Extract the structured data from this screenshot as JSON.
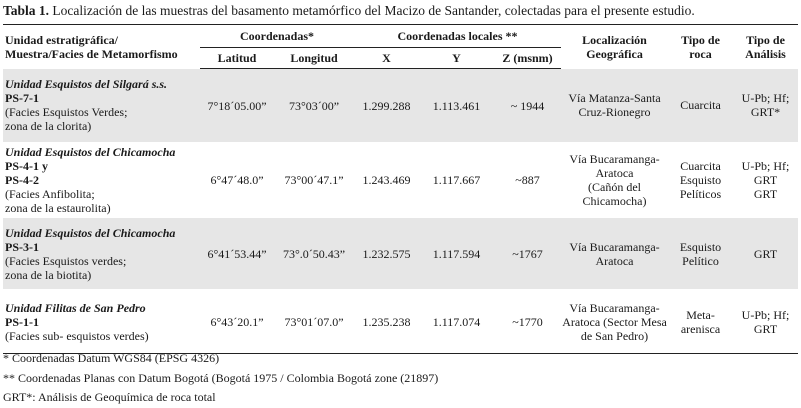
{
  "caption": {
    "label": "Tabla 1.",
    "text": "Localización de las muestras del basamento metamórfico del Macizo de Santander, colectadas para el presente estudio."
  },
  "headers": {
    "unit_line1": "Unidad estratigráfica/",
    "unit_line2": "Muestra/Facies de Metamorfismo",
    "coords": "Coordenadas*",
    "local_coords": "Coordenadas locales **",
    "location_line1": "Localización",
    "location_line2": "Geográfica",
    "rock_line1": "Tipo de",
    "rock_line2": "roca",
    "analysis_line1": "Tipo de",
    "analysis_line2": "Análisis",
    "lat": "Latitud",
    "lon": "Longitud",
    "x": "X",
    "y": "Y",
    "z": "Z (msnm)"
  },
  "rows": [
    {
      "unit": "Unidad Esquistos del Silgará s.s.",
      "sample_lines": [
        "PS-7-1"
      ],
      "facies_lines": [
        "(Facies Esquistos Verdes;",
        "zona de la clorita)"
      ],
      "lat": "7°18´05.00”",
      "lon": "73°03´00”",
      "x": "1.299.288",
      "y": "1.113.461",
      "z": "~ 1944",
      "location_lines": [
        "Vía Matanza-Santa",
        "Cruz-Rionegro"
      ],
      "rock_lines": [
        "Cuarcita"
      ],
      "analysis_lines": [
        "U-Pb; Hf;",
        "GRT*"
      ]
    },
    {
      "unit": "Unidad Esquistos del Chicamocha",
      "sample_lines": [
        "PS-4-1 y",
        "PS-4-2"
      ],
      "facies_lines": [
        "(Facies Anfibolita;",
        "zona de la estaurolita)"
      ],
      "lat": "6°47´48.0”",
      "lon": "73°00´47.1”",
      "x": "1.243.469",
      "y": "1.117.667",
      "z": "~887",
      "location_lines": [
        "Vía Bucaramanga-",
        "Aratoca",
        "(Cañón del",
        "Chicamocha)"
      ],
      "rock_lines": [
        "Cuarcita",
        "Esquisto",
        "Pelíticos"
      ],
      "analysis_lines": [
        "U-Pb; Hf;",
        "GRT",
        "GRT"
      ]
    },
    {
      "unit": "Unidad Esquistos del Chicamocha",
      "sample_lines": [
        "PS-3-1"
      ],
      "facies_lines": [
        "(Facies Esquistos verdes;",
        "zona de la biotita)"
      ],
      "lat": "6°41´53.44”",
      "lon": "73°.0´50.43”",
      "x": "1.232.575",
      "y": "1.117.594",
      "z": "~1767",
      "location_lines": [
        "Vía Bucaramanga-",
        "Aratoca"
      ],
      "rock_lines": [
        "Esquisto",
        "Pelítico"
      ],
      "analysis_lines": [
        "GRT"
      ]
    },
    {
      "unit": "Unidad Filitas de San Pedro",
      "sample_lines": [
        "PS-1-1"
      ],
      "facies_lines": [
        "(Facies sub- esquistos verdes)"
      ],
      "lat": "6°43´20.1”",
      "lon": "73°01´07.0”",
      "x": "1.235.238",
      "y": "1.117.074",
      "z": "~1770",
      "location_lines": [
        "Vía Bucaramanga-",
        "Aratoca (Sector Mesa",
        "de San Pedro)"
      ],
      "rock_lines": [
        "Meta-",
        "arenisca"
      ],
      "analysis_lines": [
        "U-Pb; Hf;",
        "GRT"
      ]
    }
  ],
  "notes": [
    "*  Coordenadas Datum WGS84  (EPSG 4326)",
    "** Coordenadas Planas con Datum Bogotá (Bogotá 1975 / Colombia Bogotá zone (21897)",
    "GRT*: Análisis de Geoquímica de roca total"
  ]
}
